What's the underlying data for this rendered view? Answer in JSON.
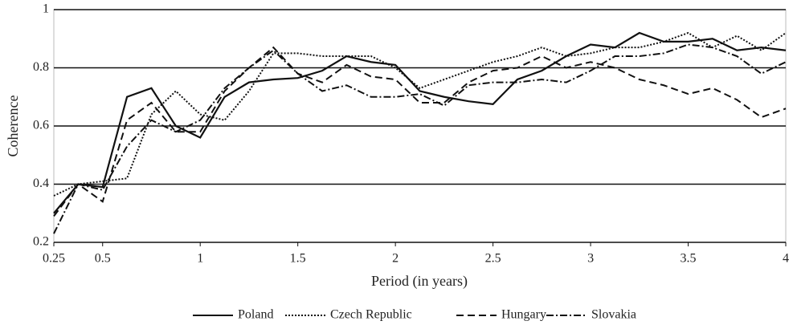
{
  "chart_data": {
    "type": "line",
    "x_label": "Period (in years)",
    "y_label": "Coherence",
    "x": [
      0.25,
      0.375,
      0.5,
      0.625,
      0.75,
      0.875,
      1,
      1.125,
      1.25,
      1.375,
      1.5,
      1.625,
      1.75,
      1.875,
      2,
      2.125,
      2.25,
      2.375,
      2.5,
      2.625,
      2.75,
      2.875,
      3,
      3.125,
      3.25,
      3.375,
      3.5,
      3.625,
      3.75,
      3.875,
      4
    ],
    "series": [
      {
        "name": "Poland",
        "color": "#111111",
        "dash": "solid",
        "values": [
          0.3,
          0.4,
          0.39,
          0.7,
          0.73,
          0.6,
          0.56,
          0.7,
          0.75,
          0.76,
          0.765,
          0.79,
          0.84,
          0.82,
          0.81,
          0.72,
          0.7,
          0.685,
          0.675,
          0.76,
          0.79,
          0.84,
          0.88,
          0.87,
          0.92,
          0.89,
          0.89,
          0.9,
          0.86,
          0.87,
          0.86
        ]
      },
      {
        "name": "Czech Republic",
        "color": "#111111",
        "dash": "dotted",
        "values": [
          0.36,
          0.4,
          0.41,
          0.42,
          0.64,
          0.72,
          0.64,
          0.62,
          0.72,
          0.85,
          0.85,
          0.84,
          0.84,
          0.84,
          0.8,
          0.73,
          0.76,
          0.79,
          0.82,
          0.84,
          0.87,
          0.84,
          0.85,
          0.87,
          0.87,
          0.89,
          0.92,
          0.87,
          0.91,
          0.86,
          0.92
        ]
      },
      {
        "name": "Hungary",
        "color": "#111111",
        "dash": "dashed",
        "values": [
          0.29,
          0.4,
          0.34,
          0.62,
          0.68,
          0.58,
          0.58,
          0.72,
          0.8,
          0.87,
          0.78,
          0.75,
          0.81,
          0.77,
          0.76,
          0.68,
          0.68,
          0.75,
          0.79,
          0.8,
          0.84,
          0.8,
          0.82,
          0.8,
          0.76,
          0.74,
          0.71,
          0.73,
          0.69,
          0.63,
          0.66
        ]
      },
      {
        "name": "Slovakia",
        "color": "#111111",
        "dash": "dashdot",
        "values": [
          0.23,
          0.4,
          0.38,
          0.53,
          0.62,
          0.58,
          0.62,
          0.73,
          0.8,
          0.86,
          0.78,
          0.72,
          0.74,
          0.7,
          0.7,
          0.71,
          0.67,
          0.74,
          0.75,
          0.75,
          0.76,
          0.75,
          0.79,
          0.84,
          0.84,
          0.85,
          0.88,
          0.87,
          0.84,
          0.78,
          0.82
        ]
      }
    ],
    "xlim": [
      0.25,
      4
    ],
    "xticks": [
      0.25,
      0.5,
      1,
      1.5,
      2,
      2.5,
      3,
      3.5,
      4
    ],
    "ylim": [
      0.2,
      1
    ],
    "yticks": [
      0.2,
      0.4,
      0.6,
      0.8,
      1
    ],
    "grid": true,
    "legend": "bottom"
  }
}
